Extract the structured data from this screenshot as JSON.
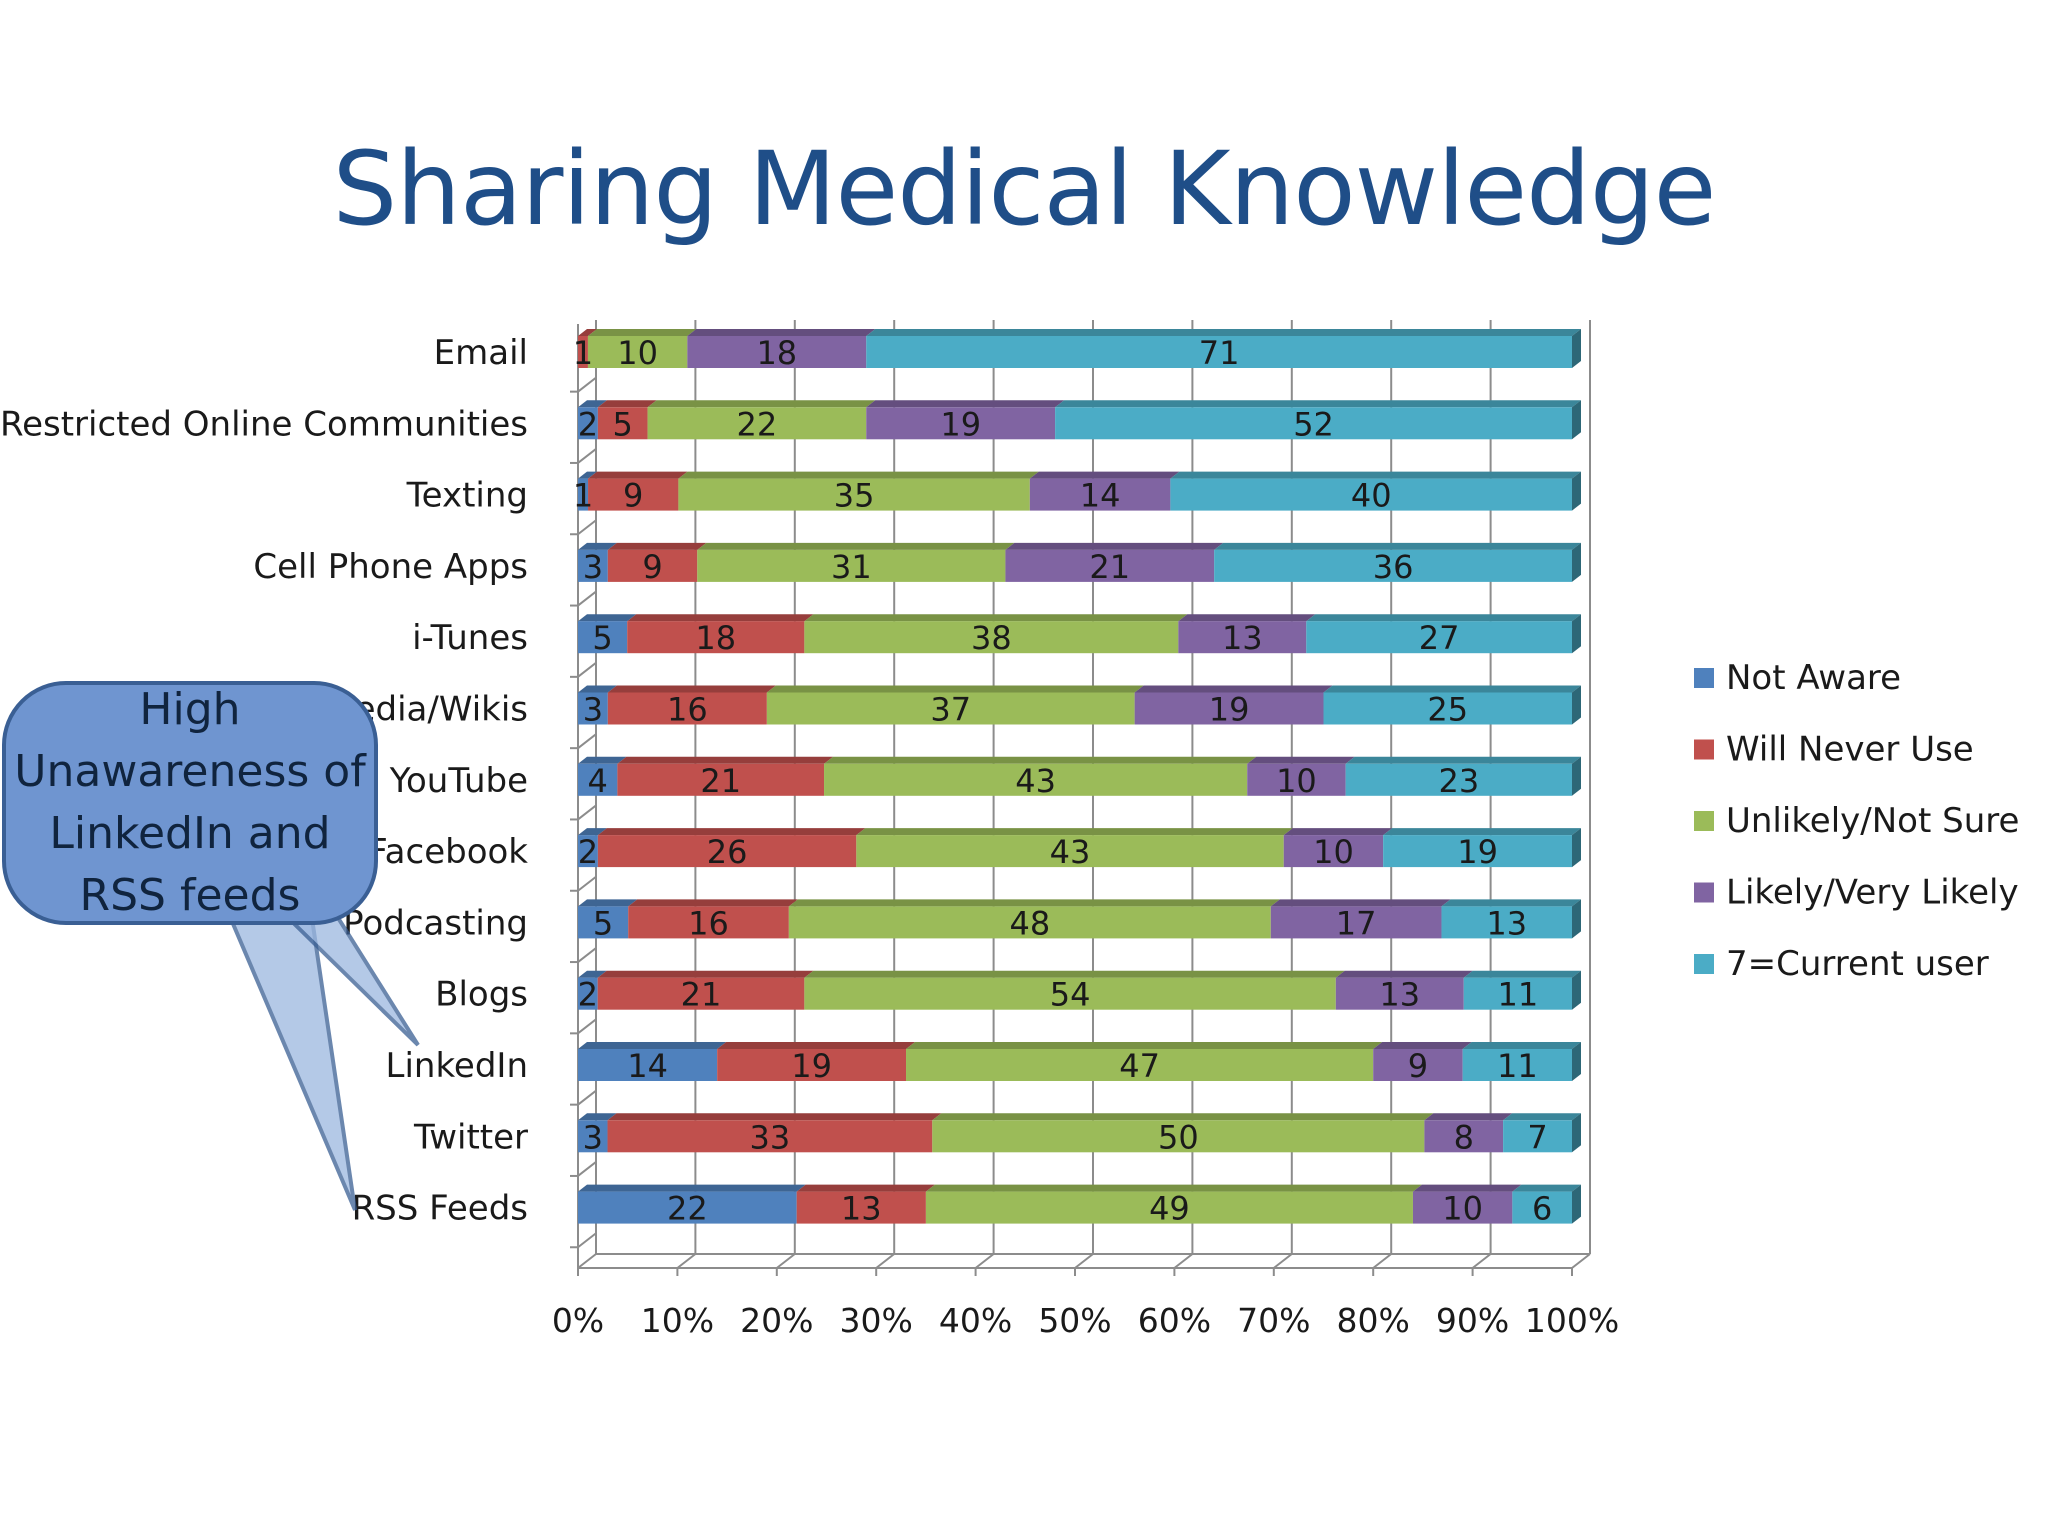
{
  "slide": {
    "title": "Sharing Medical Knowledge"
  },
  "callout": {
    "text": "High Unawareness of LinkedIn and RSS feeds"
  },
  "colors": {
    "Not Aware": "#4f81bd",
    "Will Never Use": "#c0504d",
    "Unlikely/Not Sure": "#9bbb59",
    "Likely/Very Likely": "#8064a2",
    "7=Current user": "#4bacc6",
    "callout_fill": "#6f95d0",
    "callout_border": "#3a5f94"
  },
  "chart_data": {
    "type": "bar",
    "orientation": "horizontal",
    "stacking": "percent",
    "title": "",
    "xlabel": "",
    "ylabel": "",
    "xlim": [
      0,
      100
    ],
    "x_ticks": [
      "0%",
      "10%",
      "20%",
      "30%",
      "40%",
      "50%",
      "60%",
      "70%",
      "80%",
      "90%",
      "100%"
    ],
    "grid": true,
    "legend_position": "right",
    "categories": [
      "Email",
      "Restricted Online Communities",
      "Texting",
      "Cell Phone Apps",
      "i-Tunes",
      "Wikipedia/Wikis",
      "YouTube",
      "Facebook",
      "Podcasting",
      "Blogs",
      "LinkedIn",
      "Twitter",
      "RSS Feeds"
    ],
    "series": [
      {
        "name": "Not Aware",
        "values": [
          0,
          2,
          1,
          3,
          5,
          3,
          4,
          2,
          5,
          2,
          14,
          3,
          22
        ]
      },
      {
        "name": "Will Never Use",
        "values": [
          1,
          5,
          9,
          9,
          18,
          16,
          21,
          26,
          16,
          21,
          19,
          33,
          13
        ]
      },
      {
        "name": "Unlikely/Not Sure",
        "values": [
          10,
          22,
          35,
          31,
          38,
          37,
          43,
          43,
          48,
          54,
          47,
          50,
          49
        ]
      },
      {
        "name": "Likely/Very Likely",
        "values": [
          18,
          19,
          14,
          21,
          13,
          19,
          10,
          10,
          17,
          13,
          9,
          8,
          10
        ]
      },
      {
        "name": "7=Current user",
        "values": [
          71,
          52,
          40,
          36,
          27,
          25,
          23,
          19,
          13,
          11,
          11,
          7,
          6
        ]
      }
    ]
  }
}
